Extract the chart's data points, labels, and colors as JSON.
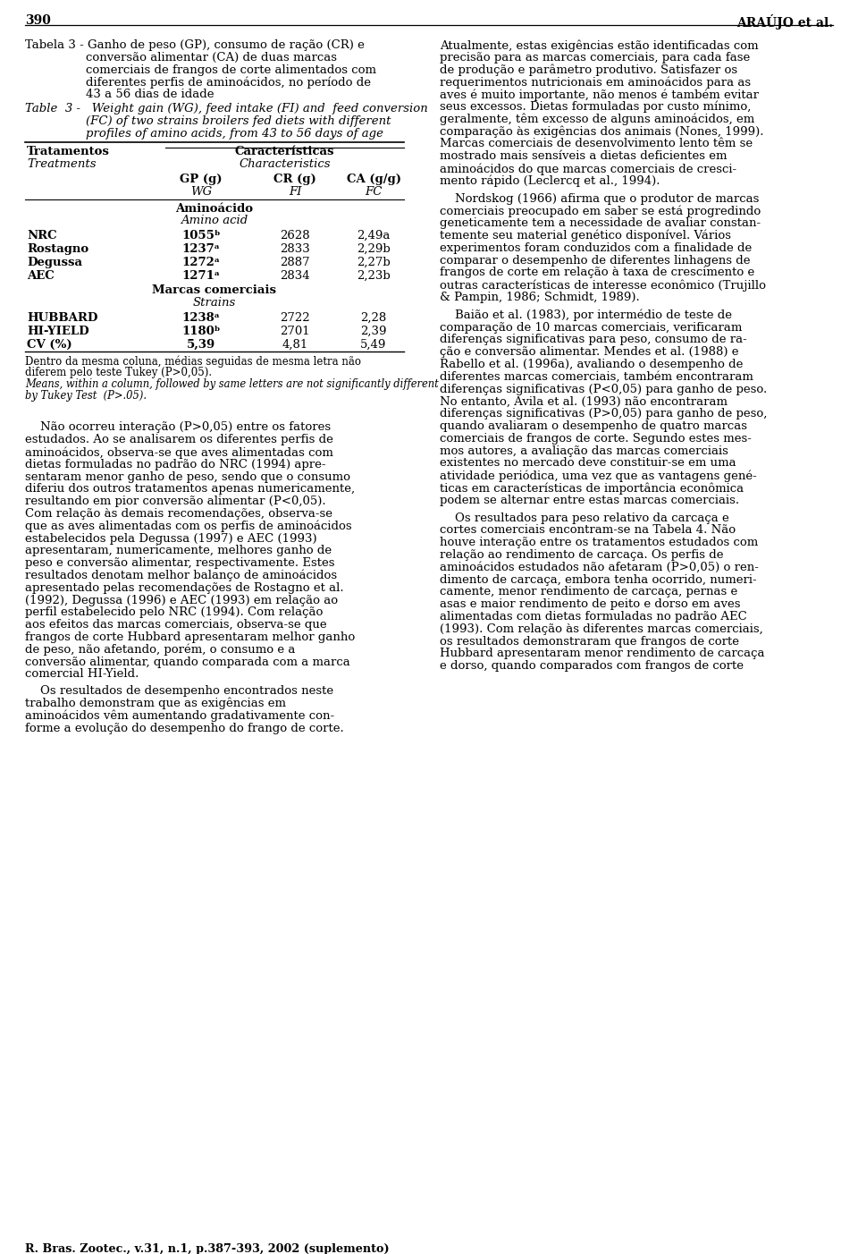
{
  "page_number": "390",
  "header_right": "ARAÚJO et al.",
  "tabela_line1": "Tabela 3 - Ganho de peso (GP), consumo de ração (CR) e",
  "tabela_line2": "conversão alimentar (CA) de duas marcas",
  "tabela_line3": "comerciais de frangos de corte alimentados com",
  "tabela_line4": "diferentes perfis de aminoácidos, no período de",
  "tabela_line5": "43 a 56 dias de idade",
  "table_en_line1": "Table  3 -   Weight gain (WG), feed intake (FI) and  feed conversion",
  "table_en_line2": "(FC) of two strains broilers fed diets with different",
  "table_en_line3": "profiles of amino acids, from 43 to 56 days of age",
  "table_header_left": "Tratamentos",
  "table_header_left_en": "Treatments",
  "table_header_right": "Características",
  "table_header_right_en": "Characteristics",
  "col_headers_pt": [
    "GP (g)",
    "CR (g)",
    "CA (g/g)"
  ],
  "col_headers_en": [
    "WG",
    "FI",
    "FC"
  ],
  "group1_header_pt": "Aminoácido",
  "group1_header_en": "Amino acid",
  "group1_rows": [
    [
      "NRC",
      "1055ᵇ",
      "2628",
      "2,49a"
    ],
    [
      "Rostagno",
      "1237ᵃ",
      "2833",
      "2,29b"
    ],
    [
      "Degussa",
      "1272ᵃ",
      "2887",
      "2,27b"
    ],
    [
      "AEC",
      "1271ᵃ",
      "2834",
      "2,23b"
    ]
  ],
  "group2_header_pt": "Marcas comerciais",
  "group2_header_en": "Strains",
  "group2_rows": [
    [
      "HUBBARD",
      "1238ᵃ",
      "2722",
      "2,28"
    ],
    [
      "HI-YIELD",
      "1180ᵇ",
      "2701",
      "2,39"
    ],
    [
      "CV (%)",
      "5,39",
      "4,81",
      "5,49"
    ]
  ],
  "fn_pt_1": "Dentro da mesma coluna, médias seguidas de mesma letra não",
  "fn_pt_2": "diferem pelo teste Tukey (P>0,05).",
  "fn_en_1": "Means, within a column, followed by same letters are not significantly different",
  "fn_en_2": "by Tukey Test  (P>.05).",
  "left_col_para1": [
    "    Não ocorreu interação (P>0,05) entre os fatores",
    "estudados. Ao se analisarem os diferentes perfis de",
    "aminoácidos, observa-se que aves alimentadas com",
    "dietas formuladas no padrão do NRC (1994) apre-",
    "sentaram menor ganho de peso, sendo que o consumo",
    "diferiu dos outros tratamentos apenas numericamente,",
    "resultando em pior conversão alimentar (P<0,05).",
    "Com relação às demais recomendações, observa-se",
    "que as aves alimentadas com os perfis de aminoácidos",
    "estabelecidos pela Degussa (1997) e AEC (1993)",
    "apresentaram, numericamente, melhores ganho de",
    "peso e conversão alimentar, respectivamente. Estes",
    "resultados denotam melhor balanço de aminoácidos",
    "apresentado pelas recomendações de Rostagno et al.",
    "(1992), Degussa (1996) e AEC (1993) em relação ao",
    "perfil estabelecido pelo NRC (1994). Com relação",
    "aos efeitos das marcas comerciais, observa-se que",
    "frangos de corte Hubbard apresentaram melhor ganho",
    "de peso, não afetando, porém, o consumo e a",
    "conversão alimentar, quando comparada com a marca",
    "comercial HI-Yield."
  ],
  "left_col_para2": [
    "    Os resultados de desempenho encontrados neste",
    "trabalho demonstram que as exigências em",
    "aminoácidos vêm aumentando gradativamente con-",
    "forme a evolução do desempenho do frango de corte."
  ],
  "right_col_para1": [
    "Atualmente, estas exigências estão identificadas com",
    "precisão para as marcas comerciais, para cada fase",
    "de produção e parâmetro produtivo. Satisfazer os",
    "requerimentos nutricionais em aminoácidos para as",
    "aves é muito importante, não menos é também evitar",
    "seus excessos. Dietas formuladas por custo mínimo,",
    "geralmente, têm excesso de alguns aminoácidos, em",
    "comparação às exigências dos animais (Nones, 1999).",
    "Marcas comerciais de desenvolvimento lento têm se",
    "mostrado mais sensíveis a dietas deficientes em",
    "aminoácidos do que marcas comerciais de cresci-",
    "mento rápido (Leclercq et al., 1994)."
  ],
  "right_col_para2": [
    "    Nordskog (1966) afirma que o produtor de marcas",
    "comerciais preocupado em saber se está progredindo",
    "geneticamente tem a necessidade de avaliar constan-",
    "temente seu material genético disponível. Vários",
    "experimentos foram conduzidos com a finalidade de",
    "comparar o desempenho de diferentes linhagens de",
    "frangos de corte em relação à taxa de crescimento e",
    "outras características de interesse econômico (Trujillo",
    "& Pampin, 1986; Schmidt, 1989)."
  ],
  "right_col_para3": [
    "    Baião et al. (1983), por intermédio de teste de",
    "comparação de 10 marcas comerciais, verificaram",
    "diferenças significativas para peso, consumo de ra-",
    "ção e conversão alimentar. Mendes et al. (1988) e",
    "Rabello et al. (1996a), avaliando o desempenho de",
    "diferentes marcas comerciais, também encontraram",
    "diferenças significativas (P<0,05) para ganho de peso.",
    "No entanto, Avila et al. (1993) não encontraram",
    "diferenças significativas (P>0,05) para ganho de peso,",
    "quando avaliaram o desempenho de quatro marcas",
    "comerciais de frangos de corte. Segundo estes mes-",
    "mos autores, a avaliação das marcas comerciais",
    "existentes no mercado deve constituir-se em uma",
    "atividade periódica, uma vez que as vantagens gené-",
    "ticas em características de importância econômica",
    "podem se alternar entre estas marcas comerciais."
  ],
  "right_col_para4": [
    "    Os resultados para peso relativo da carcaça e",
    "cortes comerciais encontram-se na Tabela 4. Não",
    "houve interação entre os tratamentos estudados com",
    "relação ao rendimento de carcaça. Os perfis de",
    "aminoácidos estudados não afetaram (P>0,05) o ren-",
    "dimento de carcaça, embora tenha ocorrido, numeri-",
    "camente, menor rendimento de carcaça, pernas e",
    "asas e maior rendimento de peito e dorso em aves",
    "alimentadas com dietas formuladas no padrão AEC",
    "(1993). Com relação às diferentes marcas comerciais,",
    "os resultados demonstraram que frangos de corte",
    "Hubbard apresentaram menor rendimento de carcaça",
    "e dorso, quando comparados com frangos de corte"
  ],
  "footer": "R. Bras. Zootec., v.31, n.1, p.387-393, 2002 (suplemento)"
}
